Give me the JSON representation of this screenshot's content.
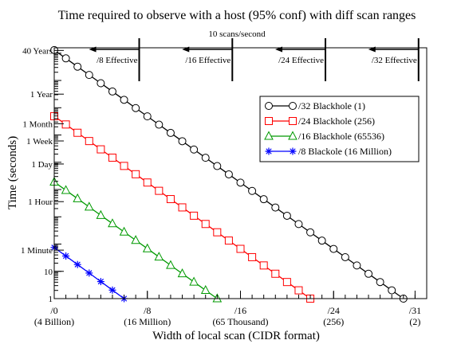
{
  "chart_data": {
    "type": "line",
    "title": "Time required to observe with a host  (95% conf) with diff scan ranges",
    "subtitle": "10 scans/second",
    "xlabel": "Width of local scan (CIDR format)",
    "ylabel": "Time (seconds)",
    "xlim": [
      0,
      32
    ],
    "ylim": [
      1,
      1580000000
    ],
    "yscale": "log",
    "grid": false,
    "legend_position": "top-right",
    "x_ticks": [
      {
        "x": 0,
        "label": "/0",
        "sublabel": "(4 Billion)"
      },
      {
        "x": 8,
        "label": "/8",
        "sublabel": "(16 Million)"
      },
      {
        "x": 16,
        "label": "/16",
        "sublabel": "(65 Thousand)"
      },
      {
        "x": 24,
        "label": "/24",
        "sublabel": "(256)"
      },
      {
        "x": 31,
        "label": "/31",
        "sublabel": "(2)"
      }
    ],
    "y_ticks": [
      {
        "y": 1,
        "label": "1"
      },
      {
        "y": 10,
        "label": "10"
      },
      {
        "y": 60,
        "label": "1 Minute"
      },
      {
        "y": 3600,
        "label": "1 Hour"
      },
      {
        "y": 86400,
        "label": "1 Day"
      },
      {
        "y": 604800,
        "label": "1 Week"
      },
      {
        "y": 2592000,
        "label": "1 Month"
      },
      {
        "y": 31536000,
        "label": "1 Year"
      },
      {
        "y": 1261440000,
        "label": "40 Years"
      }
    ],
    "annotations": [
      {
        "x": 7.3,
        "label": "/8 Effective"
      },
      {
        "x": 15.3,
        "label": "/16 Effective"
      },
      {
        "x": 23.3,
        "label": "/24 Effective"
      },
      {
        "x": 31.3,
        "label": "/32 Effective"
      }
    ],
    "series": [
      {
        "name": "/32 Blackhole (1)",
        "color": "#000000",
        "marker": "circle",
        "x_start": 0,
        "x_end": 30,
        "y_start": 1300000000,
        "y_end": 1
      },
      {
        "name": "/24 Blackhole (256)",
        "color": "#ff0000",
        "marker": "square",
        "x_start": 0,
        "x_end": 22,
        "y_start": 4900000,
        "y_end": 1
      },
      {
        "name": "/16 Blackhole (65536)",
        "color": "#009900",
        "marker": "triangle",
        "x_start": 0,
        "x_end": 14,
        "y_start": 19000,
        "y_end": 1
      },
      {
        "name": "/8 Blackole (16 Million)",
        "color": "#0000ff",
        "marker": "star",
        "x_start": 0,
        "x_end": 6,
        "y_start": 75,
        "y_end": 1
      }
    ]
  }
}
